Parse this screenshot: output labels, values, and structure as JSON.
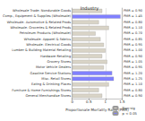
{
  "chart_data": {
    "type": "bar",
    "orientation": "horizontal",
    "title": "Industry",
    "x_label": "Proportionate Mortality Ratio (PMR)",
    "categories": [
      "Wholesale Trade: Nondurable Goods",
      "Comp., Equipment & Supplies (Wholesale)",
      "Wholesale: Automotive & Related Prods",
      "Wholesale: Groceries & Related Prods",
      "Petroleum Products (Wholesale)",
      "Wholesale: Apparel & Fabrics",
      "Wholesale: Electrical Goods",
      "Lumber & Building Material Retailing",
      "Hardware Retailing",
      "Grocery Stores",
      "Motor Vehicle Dealers",
      "Gasoline Service Stations",
      "Misc. Retail Stores",
      "Eating & Drinking Places",
      "Furniture & Home Furnishings Stores",
      "General Merchandise Stores"
    ],
    "series": [
      {
        "name": "Non-sig",
        "color": "#d9d4c7",
        "values": [
          0.9,
          null,
          0.8,
          1.1,
          0.7,
          0.85,
          0.95,
          1.0,
          0.9,
          1.05,
          0.95,
          null,
          null,
          1.1,
          0.8,
          0.9
        ],
        "value_labels": [
          "PMR = 0.90",
          null,
          "PMR = 0.80",
          "PMR = 1.10",
          "PMR = 0.70",
          "PMR = 0.85",
          "PMR = 0.95",
          "PMR = 1.00",
          "PMR = 0.90",
          "PMR = 1.05",
          "PMR = 0.95",
          null,
          null,
          "PMR = 1.10",
          "PMR = 0.80",
          "PMR = 0.90"
        ]
      },
      {
        "name": "p < 0.05",
        "color": "#8080ff",
        "values": [
          null,
          1.45,
          null,
          null,
          null,
          null,
          null,
          null,
          null,
          null,
          null,
          1.2,
          1.25,
          null,
          null,
          null
        ],
        "value_labels": [
          null,
          "PMR = 1.45",
          null,
          null,
          null,
          null,
          null,
          null,
          null,
          null,
          null,
          "PMR = 1.20",
          "PMR = 1.25",
          null,
          null,
          null
        ]
      }
    ],
    "xlim": [
      0,
      1.5
    ],
    "xticks": [
      0,
      0.5,
      1,
      1.5
    ],
    "grid": true,
    "legend": "bottom-right",
    "data_labels": true
  }
}
